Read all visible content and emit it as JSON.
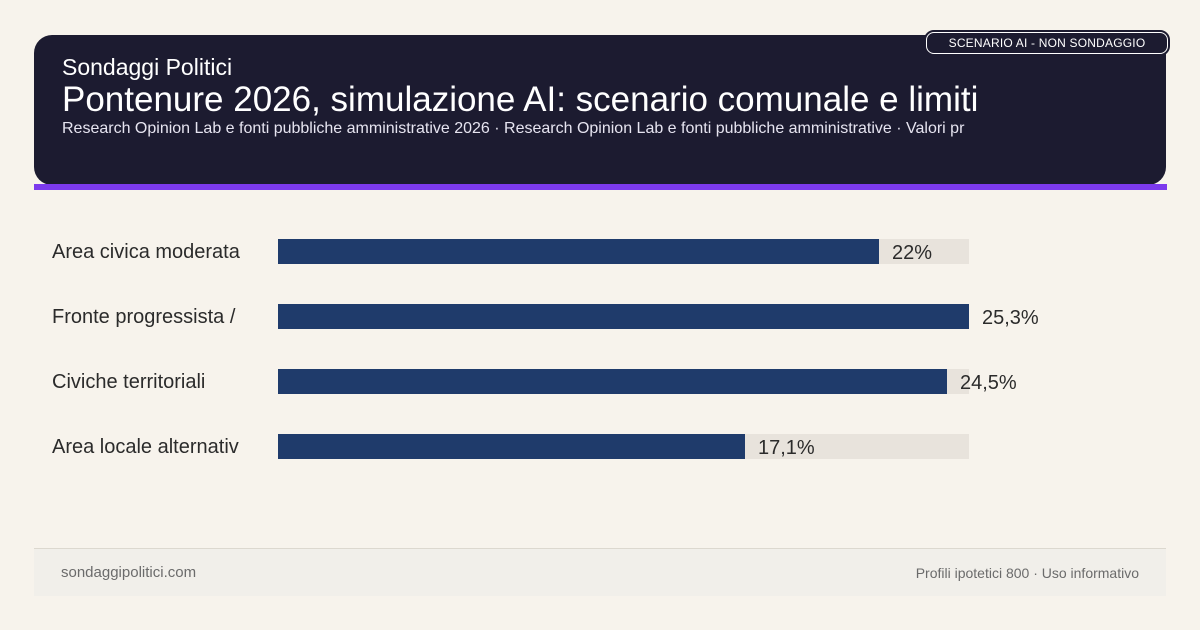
{
  "header": {
    "brand": "Sondaggi Politici",
    "title": "Pontenure 2026, simulazione AI: scenario comunale e limiti",
    "subtitle": "Research Opinion Lab e fonti pubbliche amministrative 2026 · Research Opinion Lab e fonti pubbliche amministrative · Valori pr",
    "badge": "SCENARIO AI - NON SONDAGGIO"
  },
  "colors": {
    "bar": "#1f3b6b",
    "track": "#e8e3dc",
    "header_bg": "#1c1b30",
    "accent": "#7c3aed"
  },
  "chart_data": {
    "type": "bar",
    "orientation": "horizontal",
    "categories": [
      "Area civica moderata",
      "Fronte progressista /",
      "Civiche territoriali",
      "Area locale alternativ"
    ],
    "values": [
      22,
      25.3,
      24.5,
      17.1
    ],
    "value_labels": [
      "22%",
      "25,3%",
      "24,5%",
      "17,1%"
    ],
    "xlim": [
      0,
      25.3
    ],
    "grid": false,
    "legend": "none"
  },
  "footer": {
    "site": "sondaggipolitici.com",
    "note": "Profili ipotetici 800 · Uso informativo"
  }
}
